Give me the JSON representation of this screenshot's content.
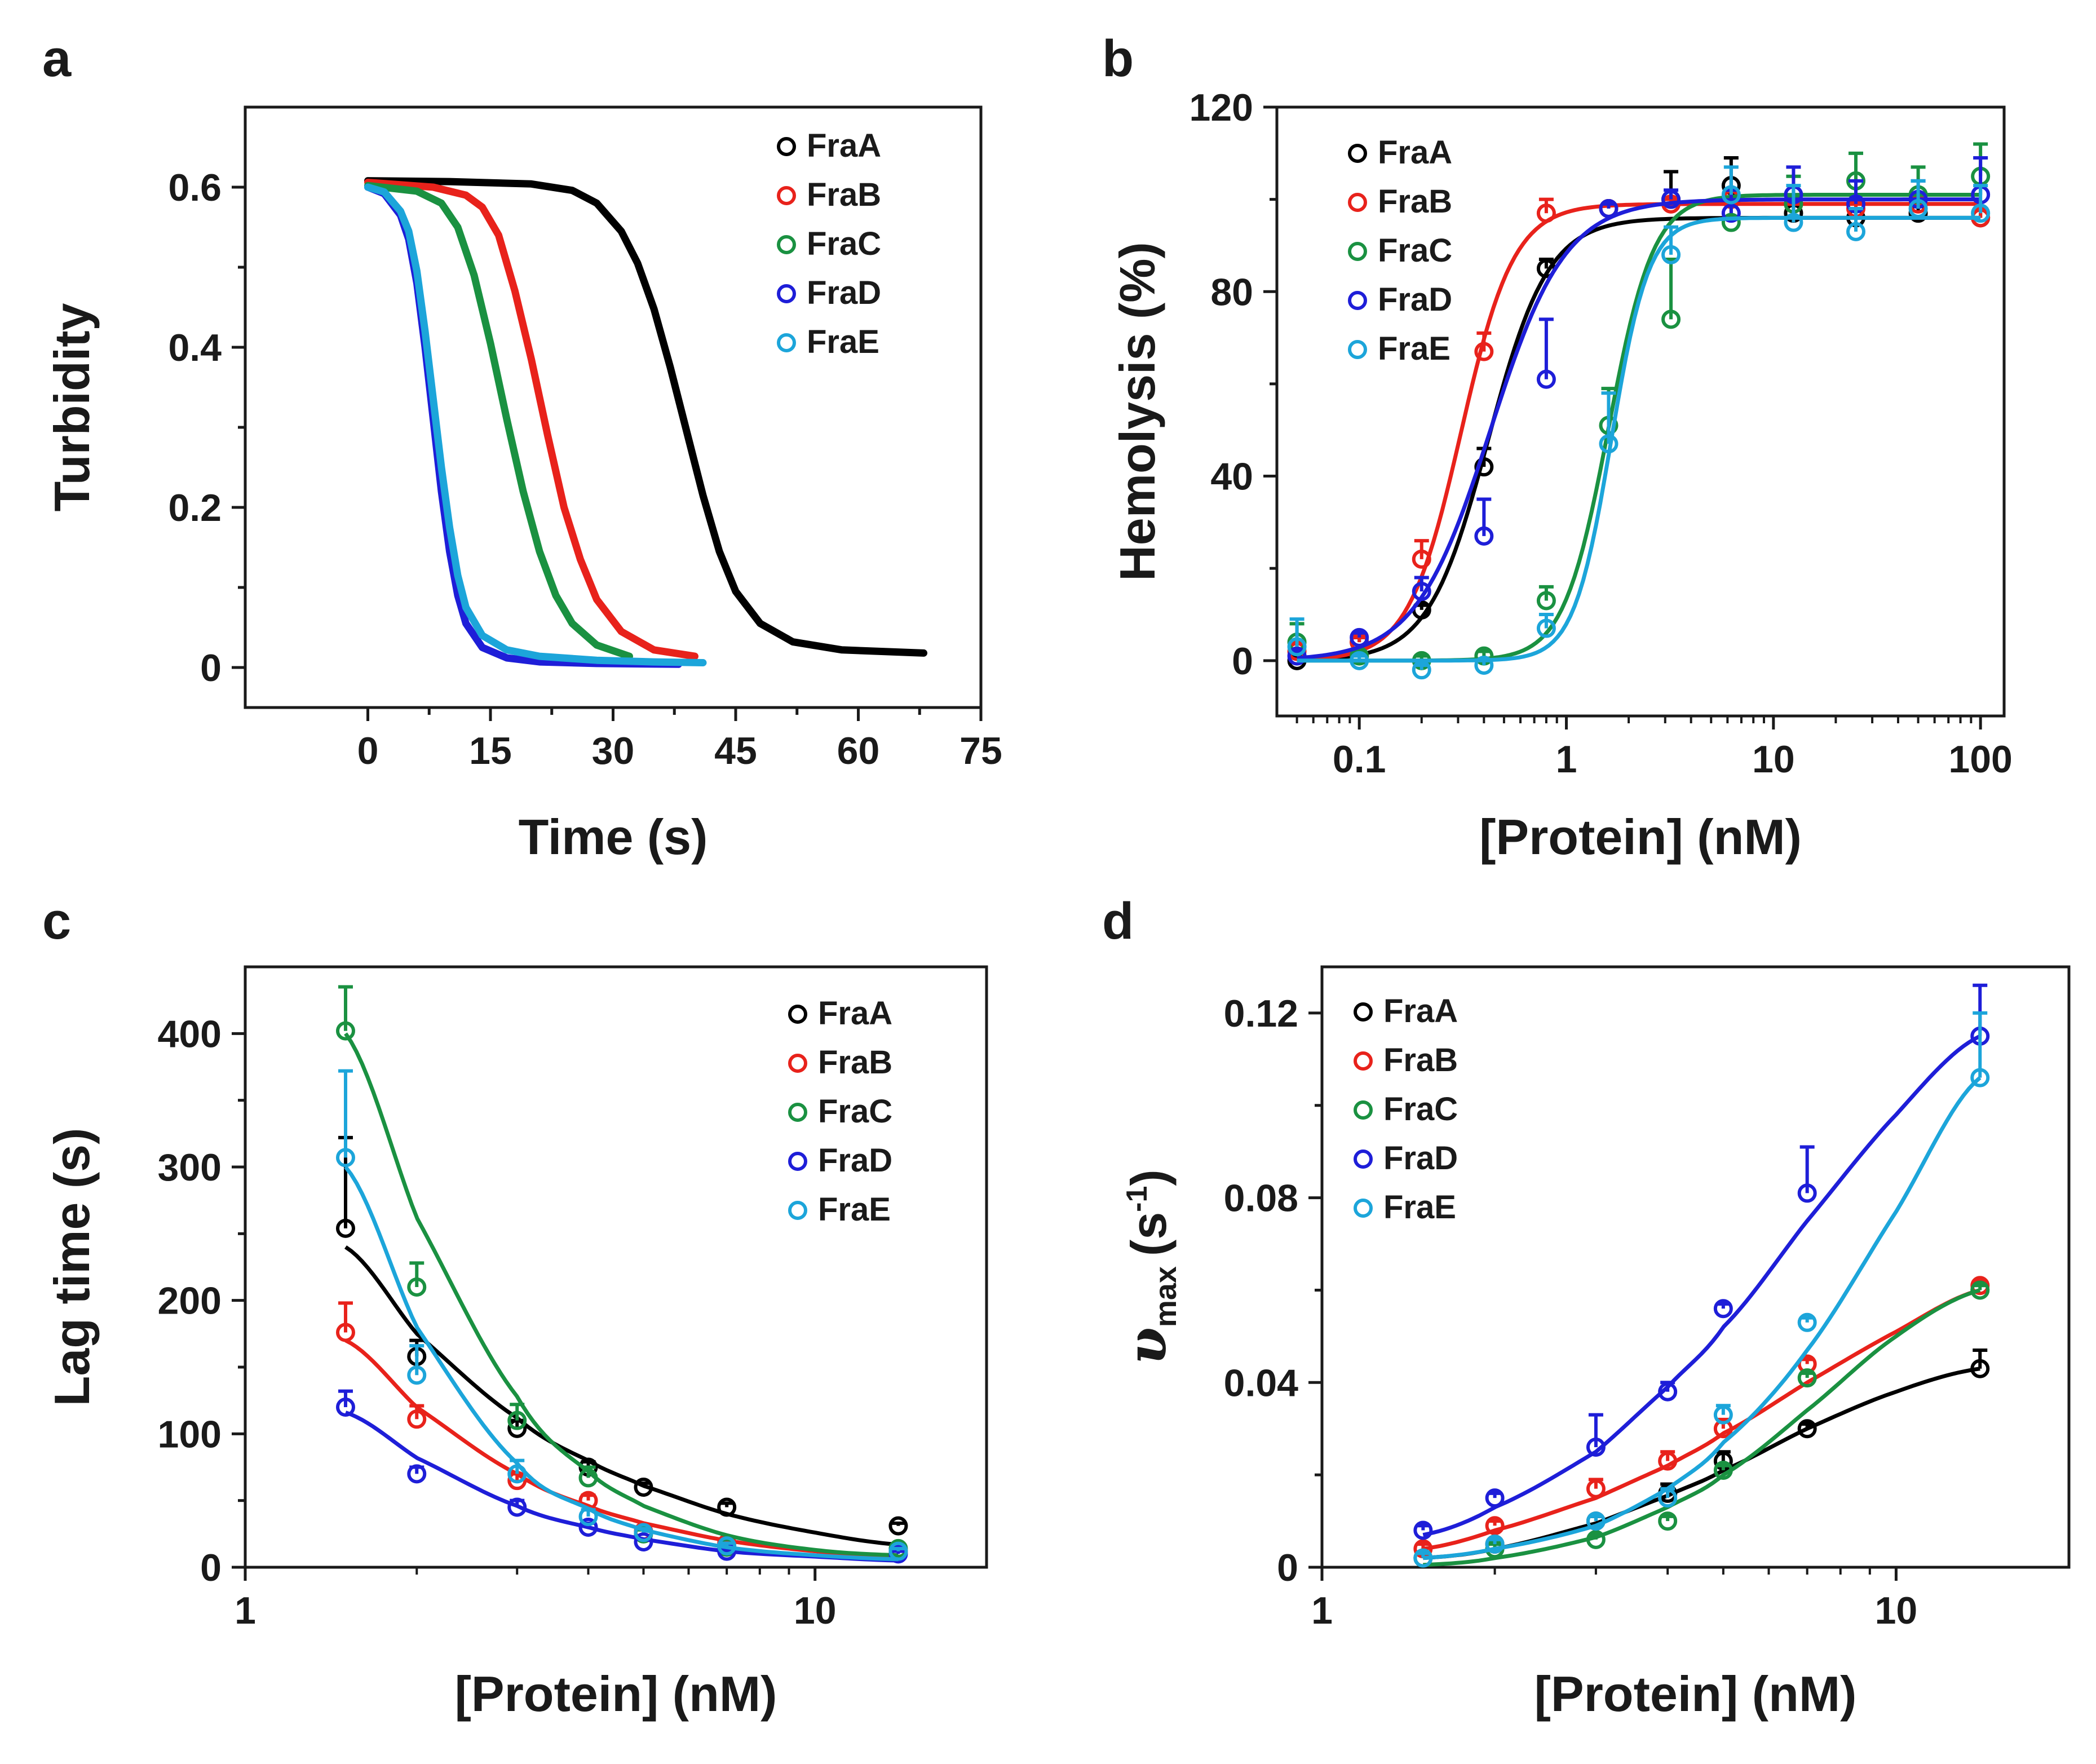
{
  "colors": {
    "FraA": "#000000",
    "FraB": "#e8221b",
    "FraC": "#1a9141",
    "FraD": "#1e1ed8",
    "FraE": "#1ca5da",
    "axis": "#1a1a1a"
  },
  "chart_data": [
    {
      "panel": "a",
      "type": "line",
      "xlabel": "Time (s)",
      "ylabel": "Turbidity",
      "xlim": [
        -15,
        75
      ],
      "ylim": [
        -0.05,
        0.7
      ],
      "xticks": [
        0,
        15,
        30,
        45,
        60,
        75
      ],
      "xtick_labels": [
        "0",
        "15",
        "30",
        "45",
        "60",
        "75"
      ],
      "yticks": [
        0,
        0.2,
        0.4,
        0.6
      ],
      "ytick_labels": [
        "0",
        "0.2",
        "0.4",
        "0.6"
      ],
      "legend": [
        "FraA",
        "FraB",
        "FraC",
        "FraD",
        "FraE"
      ],
      "legend_position": "top-right",
      "series": [
        {
          "name": "FraA",
          "x": [
            0,
            10,
            20,
            25,
            28,
            31,
            33,
            35,
            37,
            39,
            41,
            43,
            45,
            48,
            52,
            58,
            68
          ],
          "y": [
            0.608,
            0.607,
            0.604,
            0.596,
            0.58,
            0.545,
            0.505,
            0.448,
            0.375,
            0.295,
            0.215,
            0.145,
            0.095,
            0.055,
            0.032,
            0.022,
            0.018
          ]
        },
        {
          "name": "FraB",
          "x": [
            0,
            8,
            12,
            14,
            16,
            18,
            20,
            22,
            24,
            26,
            28,
            31,
            35,
            40
          ],
          "y": [
            0.606,
            0.6,
            0.59,
            0.575,
            0.54,
            0.47,
            0.385,
            0.29,
            0.2,
            0.135,
            0.085,
            0.045,
            0.022,
            0.014
          ]
        },
        {
          "name": "FraC",
          "x": [
            0,
            6,
            9,
            11,
            13,
            15,
            17,
            19,
            21,
            23,
            25,
            28,
            32
          ],
          "y": [
            0.602,
            0.595,
            0.58,
            0.55,
            0.49,
            0.405,
            0.31,
            0.22,
            0.145,
            0.09,
            0.055,
            0.028,
            0.014
          ]
        },
        {
          "name": "FraD",
          "x": [
            0,
            2,
            4,
            5,
            6,
            7,
            8,
            9,
            10,
            11,
            12,
            14,
            17,
            21,
            28,
            38
          ],
          "y": [
            0.6,
            0.592,
            0.565,
            0.535,
            0.48,
            0.4,
            0.31,
            0.22,
            0.145,
            0.09,
            0.055,
            0.025,
            0.012,
            0.007,
            0.005,
            0.004
          ]
        },
        {
          "name": "FraE",
          "x": [
            0,
            2,
            4,
            5,
            6,
            7,
            8,
            9,
            10,
            11,
            12,
            14,
            17,
            21,
            28,
            35,
            41
          ],
          "y": [
            0.6,
            0.594,
            0.57,
            0.545,
            0.495,
            0.42,
            0.335,
            0.25,
            0.175,
            0.115,
            0.075,
            0.04,
            0.022,
            0.014,
            0.009,
            0.007,
            0.006
          ]
        }
      ]
    },
    {
      "panel": "b",
      "type": "scatter",
      "xscale": "log",
      "xlabel": "[Protein] (nM)",
      "ylabel": "Hemolysis (%)",
      "xlim": [
        0.04,
        130
      ],
      "ylim": [
        -12,
        120
      ],
      "xticks": [
        0.1,
        1,
        10,
        100
      ],
      "xtick_labels": [
        "0.1",
        "1",
        "10",
        "100"
      ],
      "yticks": [
        0,
        40,
        80,
        120
      ],
      "ytick_labels": [
        "0",
        "40",
        "80",
        "120"
      ],
      "legend": [
        "FraA",
        "FraB",
        "FraC",
        "FraD",
        "FraE"
      ],
      "legend_position": "top-left",
      "fit": "hill",
      "series": [
        {
          "name": "FraA",
          "x": [
            0.05,
            0.1,
            0.2,
            0.4,
            0.8,
            1.6,
            3.2,
            6.25,
            12.5,
            25,
            50,
            100
          ],
          "y": [
            0,
            4,
            11,
            42,
            85,
            98,
            100,
            103,
            97,
            96,
            97,
            96
          ],
          "err": [
            1,
            1,
            1,
            4,
            2,
            1,
            6,
            6,
            3,
            2,
            2,
            2
          ],
          "fit": {
            "bottom": 0,
            "top": 96,
            "ec50": 0.42,
            "n": 3.0
          }
        },
        {
          "name": "FraB",
          "x": [
            0.05,
            0.1,
            0.2,
            0.4,
            0.8,
            1.6,
            3.2,
            6.25,
            12.5,
            25,
            50,
            100
          ],
          "y": [
            2,
            4,
            22,
            67,
            97,
            98,
            99,
            100,
            99,
            98,
            99,
            96
          ],
          "err": [
            2,
            1,
            4,
            4,
            3,
            1,
            1,
            2,
            2,
            2,
            2,
            2
          ],
          "fit": {
            "bottom": 0,
            "top": 99,
            "ec50": 0.31,
            "n": 3.4
          }
        },
        {
          "name": "FraC",
          "x": [
            0.05,
            0.1,
            0.2,
            0.4,
            0.8,
            1.6,
            3.2,
            6.25,
            12.5,
            25,
            50,
            100
          ],
          "y": [
            4,
            1,
            0,
            1,
            13,
            51,
            74,
            95,
            99,
            104,
            101,
            105
          ],
          "err": [
            4,
            1,
            1,
            1,
            3,
            8,
            13,
            7,
            6,
            6,
            6,
            7
          ],
          "fit": {
            "bottom": 0,
            "top": 101,
            "ec50": 1.6,
            "n": 4.0
          }
        },
        {
          "name": "FraD",
          "x": [
            0.05,
            0.1,
            0.2,
            0.4,
            0.8,
            1.6,
            3.2,
            6.25,
            12.5,
            25,
            50,
            100
          ],
          "y": [
            1,
            5,
            15,
            27,
            61,
            98,
            100,
            97,
            101,
            99,
            100,
            101
          ],
          "err": [
            1,
            1,
            3,
            8,
            13,
            1,
            2,
            5,
            6,
            5,
            4,
            8
          ],
          "fit": {
            "bottom": 0,
            "top": 100,
            "ec50": 0.43,
            "n": 2.4
          }
        },
        {
          "name": "FraE",
          "x": [
            0.05,
            0.1,
            0.2,
            0.4,
            0.8,
            1.6,
            3.2,
            6.25,
            12.5,
            25,
            50,
            100
          ],
          "y": [
            3,
            0,
            -2,
            -1,
            7,
            47,
            88,
            101,
            95,
            93,
            98,
            97
          ],
          "err": [
            6,
            1,
            1,
            1,
            3,
            11,
            6,
            6,
            8,
            5,
            6,
            6
          ],
          "fit": {
            "bottom": 0,
            "top": 96,
            "ec50": 1.65,
            "n": 4.8
          }
        }
      ]
    },
    {
      "panel": "c",
      "type": "scatter",
      "xscale": "log",
      "xlabel": "[Protein] (nM)",
      "ylabel": "Lag time (s)",
      "xlim": [
        1,
        20
      ],
      "ylim": [
        0,
        450
      ],
      "xticks": [
        1,
        10
      ],
      "xtick_labels": [
        "1",
        "10"
      ],
      "yticks": [
        0,
        100,
        200,
        300,
        400
      ],
      "ytick_labels": [
        "0",
        "100",
        "200",
        "300",
        "400"
      ],
      "legend": [
        "FraA",
        "FraB",
        "FraC",
        "FraD",
        "FraE"
      ],
      "legend_position": "top-right",
      "series": [
        {
          "name": "FraA",
          "x": [
            1.5,
            2,
            3,
            4,
            5,
            7,
            14
          ],
          "y": [
            254,
            158,
            104,
            75,
            60,
            45,
            31
          ],
          "err": [
            68,
            12,
            6,
            4,
            3,
            3,
            2
          ],
          "fit_x": [
            1.5,
            2,
            3,
            4,
            5,
            7,
            10,
            14
          ],
          "fit_y": [
            240,
            175,
            112,
            80,
            61,
            40,
            26,
            17
          ]
        },
        {
          "name": "FraB",
          "x": [
            1.5,
            2,
            3,
            4,
            5,
            7,
            14
          ],
          "y": [
            176,
            111,
            65,
            50,
            27,
            18,
            12
          ],
          "err": [
            22,
            10,
            5,
            4,
            3,
            2,
            2
          ],
          "fit_x": [
            1.5,
            2,
            3,
            4,
            5,
            7,
            10,
            14
          ],
          "fit_y": [
            170,
            120,
            70,
            46,
            33,
            20,
            12,
            8
          ]
        },
        {
          "name": "FraC",
          "x": [
            1.5,
            2,
            3,
            4,
            5,
            7,
            14
          ],
          "y": [
            402,
            210,
            110,
            67,
            25,
            15,
            14
          ],
          "err": [
            33,
            18,
            12,
            8,
            3,
            2,
            2
          ],
          "fit_x": [
            1.5,
            2,
            3,
            4,
            5,
            7,
            10,
            14
          ],
          "fit_y": [
            400,
            262,
            128,
            72,
            46,
            24,
            13,
            9
          ]
        },
        {
          "name": "FraD",
          "x": [
            1.5,
            2,
            3,
            4,
            5,
            7,
            14
          ],
          "y": [
            120,
            70,
            45,
            30,
            19,
            12,
            10
          ],
          "err": [
            12,
            5,
            5,
            3,
            2,
            2,
            2
          ],
          "fit_x": [
            1.5,
            2,
            3,
            4,
            5,
            7,
            10,
            14
          ],
          "fit_y": [
            116,
            82,
            46,
            30,
            21,
            12,
            8,
            5
          ]
        },
        {
          "name": "FraE",
          "x": [
            1.5,
            2,
            3,
            4,
            5,
            7,
            14
          ],
          "y": [
            307,
            144,
            70,
            38,
            26,
            16,
            12
          ],
          "err": [
            65,
            22,
            10,
            5,
            3,
            2,
            2
          ],
          "fit_x": [
            1.5,
            2,
            3,
            4,
            5,
            7,
            10,
            14
          ],
          "fit_y": [
            300,
            180,
            78,
            44,
            28,
            15,
            9,
            6
          ]
        }
      ]
    },
    {
      "panel": "d",
      "type": "scatter",
      "xscale": "log",
      "xlabel": "[Protein] (nM)",
      "ylabel_parts": {
        "symbol": "υ",
        "subscript": "max",
        "unit_open": "(s",
        "unit_exp": "-1",
        "unit_close": ")"
      },
      "xlim": [
        1,
        20
      ],
      "ylim": [
        0,
        0.13
      ],
      "xticks": [
        1,
        10
      ],
      "xtick_labels": [
        "1",
        "10"
      ],
      "yticks": [
        0,
        0.04,
        0.08,
        0.12
      ],
      "ytick_labels": [
        "0",
        "0.04",
        "0.08",
        "0.12"
      ],
      "legend": [
        "FraA",
        "FraB",
        "FraC",
        "FraD",
        "FraE"
      ],
      "legend_position": "top-left",
      "series": [
        {
          "name": "FraA",
          "x": [
            1.5,
            2,
            3,
            4,
            5,
            7,
            14
          ],
          "y": [
            0.002,
            0.005,
            0.01,
            0.016,
            0.023,
            0.03,
            0.043
          ],
          "err": [
            0.001,
            0.001,
            0.001,
            0.002,
            0.002,
            0.001,
            0.004
          ],
          "fit_x": [
            1.5,
            2,
            3,
            4,
            5,
            7,
            10,
            14
          ],
          "fit_y": [
            0.002,
            0.004,
            0.0095,
            0.0155,
            0.021,
            0.03,
            0.038,
            0.043
          ]
        },
        {
          "name": "FraB",
          "x": [
            1.5,
            2,
            3,
            4,
            5,
            7,
            14
          ],
          "y": [
            0.004,
            0.009,
            0.017,
            0.023,
            0.03,
            0.044,
            0.061
          ],
          "err": [
            0.001,
            0.001,
            0.002,
            0.002,
            0.002,
            0.001,
            0.001
          ],
          "fit_x": [
            1.5,
            2,
            3,
            4,
            5,
            7,
            10,
            14
          ],
          "fit_y": [
            0.004,
            0.008,
            0.015,
            0.022,
            0.029,
            0.04,
            0.051,
            0.06
          ]
        },
        {
          "name": "FraC",
          "x": [
            1.5,
            2,
            3,
            4,
            5,
            7,
            14
          ],
          "y": [
            0.002,
            0.004,
            0.006,
            0.01,
            0.021,
            0.041,
            0.06
          ],
          "err": [
            0.001,
            0.001,
            0.001,
            0.001,
            0.001,
            0.001,
            0.001
          ],
          "fit_x": [
            1.5,
            2,
            3,
            4,
            5,
            7,
            10,
            14
          ],
          "fit_y": [
            0.0005,
            0.002,
            0.0065,
            0.013,
            0.02,
            0.034,
            0.05,
            0.06
          ]
        },
        {
          "name": "FraD",
          "x": [
            1.5,
            2,
            3,
            4,
            5,
            7,
            14
          ],
          "y": [
            0.008,
            0.015,
            0.026,
            0.038,
            0.056,
            0.081,
            0.115
          ],
          "err": [
            0.001,
            0.001,
            0.007,
            0.002,
            0.001,
            0.01,
            0.011
          ],
          "fit_x": [
            1.5,
            2,
            3,
            4,
            5,
            7,
            10,
            14
          ],
          "fit_y": [
            0.007,
            0.013,
            0.025,
            0.039,
            0.052,
            0.075,
            0.098,
            0.115
          ]
        },
        {
          "name": "FraE",
          "x": [
            1.5,
            2,
            3,
            4,
            5,
            7,
            14
          ],
          "y": [
            0.002,
            0.005,
            0.01,
            0.015,
            0.033,
            0.053,
            0.106
          ],
          "err": [
            0.001,
            0.001,
            0.001,
            0.002,
            0.002,
            0.001,
            0.014
          ],
          "fit_x": [
            1.5,
            2,
            3,
            4,
            5,
            7,
            10,
            14
          ],
          "fit_y": [
            0.002,
            0.004,
            0.009,
            0.017,
            0.027,
            0.047,
            0.077,
            0.106
          ]
        }
      ]
    }
  ]
}
